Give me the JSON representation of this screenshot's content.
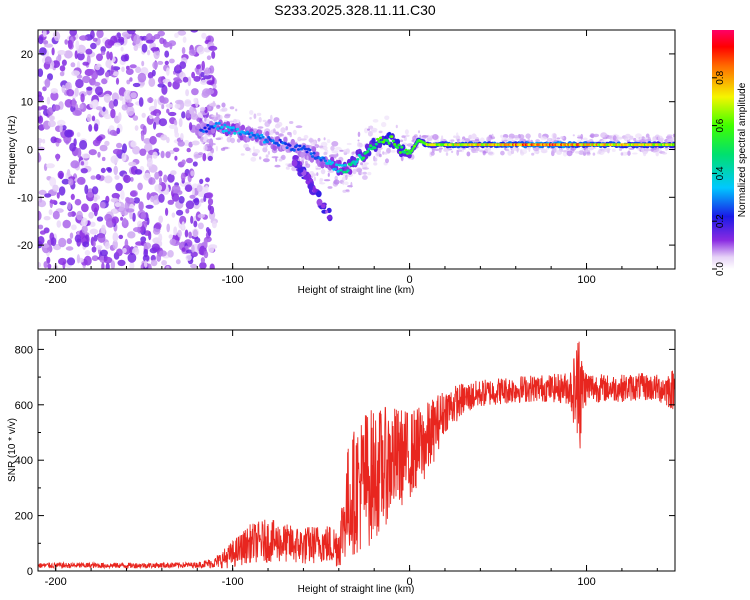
{
  "title": "S233.2025.328.11.11.C30",
  "chart_data": [
    {
      "type": "heatmap",
      "name": "spectrogram",
      "xlabel": "Height of straight line (km)",
      "ylabel": "Frequency (Hz)",
      "xlim": [
        -210,
        150
      ],
      "ylim": [
        -25,
        25
      ],
      "xticks": [
        -200,
        -100,
        0,
        100
      ],
      "xtick_labels": [
        "-200",
        "-100",
        "0",
        "100"
      ],
      "yticks": [
        -20,
        -10,
        0,
        10,
        20
      ],
      "ytick_labels": [
        "-20",
        "-10",
        "0",
        "10",
        "20"
      ],
      "colorbar": {
        "label": "Normalized spectral amplitude",
        "range": [
          0,
          1
        ],
        "ticks": [
          0.0,
          0.2,
          0.4,
          0.6,
          0.8
        ],
        "tick_labels": [
          "0.0",
          "0.2",
          "0.4",
          "0.6",
          "0.8"
        ]
      },
      "ridge": {
        "x": [
          -118,
          -110,
          -100,
          -90,
          -80,
          -70,
          -60,
          -50,
          -40,
          -35,
          -30,
          -25,
          -20,
          -15,
          -10,
          -5,
          0,
          5,
          10,
          20,
          40,
          60,
          80,
          100,
          120,
          150
        ],
        "freq": [
          4,
          5,
          4,
          3,
          2,
          1,
          0,
          -2,
          -4,
          -4,
          -2,
          -1,
          1,
          2,
          2,
          0,
          -1,
          2,
          1,
          1,
          1,
          1,
          1,
          1,
          1,
          1
        ],
        "amplitude": [
          0.25,
          0.3,
          0.35,
          0.3,
          0.3,
          0.25,
          0.25,
          0.3,
          0.4,
          0.45,
          0.45,
          0.5,
          0.55,
          0.6,
          0.6,
          0.55,
          0.55,
          0.6,
          0.65,
          0.7,
          0.75,
          0.85,
          0.9,
          0.8,
          0.75,
          0.7
        ]
      }
    },
    {
      "type": "line",
      "name": "snr",
      "xlabel": "Height of straight line (km)",
      "ylabel": "SNR (10 * v/v)",
      "xlim": [
        -210,
        150
      ],
      "ylim": [
        0,
        870
      ],
      "xticks": [
        -200,
        -100,
        0,
        100
      ],
      "xtick_labels": [
        "-200",
        "-100",
        "0",
        "100"
      ],
      "yticks": [
        0,
        200,
        400,
        600,
        800
      ],
      "ytick_labels": [
        "0",
        "200",
        "400",
        "600",
        "800"
      ],
      "series": [
        {
          "name": "SNR",
          "color": "#e8261f",
          "envelope_x": [
            -210,
            -150,
            -120,
            -110,
            -100,
            -90,
            -80,
            -70,
            -60,
            -50,
            -40,
            -35,
            -30,
            -25,
            -20,
            -15,
            -10,
            0,
            10,
            20,
            30,
            40,
            50,
            60,
            70,
            80,
            90,
            95,
            100,
            110,
            120,
            130,
            140,
            150
          ],
          "envelope_mean": [
            20,
            20,
            22,
            30,
            60,
            100,
            110,
            100,
            90,
            100,
            90,
            250,
            300,
            330,
            350,
            370,
            400,
            420,
            470,
            580,
            620,
            640,
            650,
            655,
            660,
            660,
            660,
            650,
            665,
            660,
            660,
            665,
            660,
            655
          ],
          "envelope_spread": [
            10,
            10,
            10,
            20,
            50,
            70,
            80,
            70,
            70,
            70,
            80,
            200,
            240,
            260,
            240,
            220,
            200,
            160,
            140,
            80,
            60,
            50,
            50,
            50,
            50,
            50,
            60,
            180,
            60,
            50,
            50,
            50,
            50,
            80
          ]
        }
      ]
    }
  ],
  "colors": {
    "line": "#e8261f",
    "axis": "#000000"
  }
}
